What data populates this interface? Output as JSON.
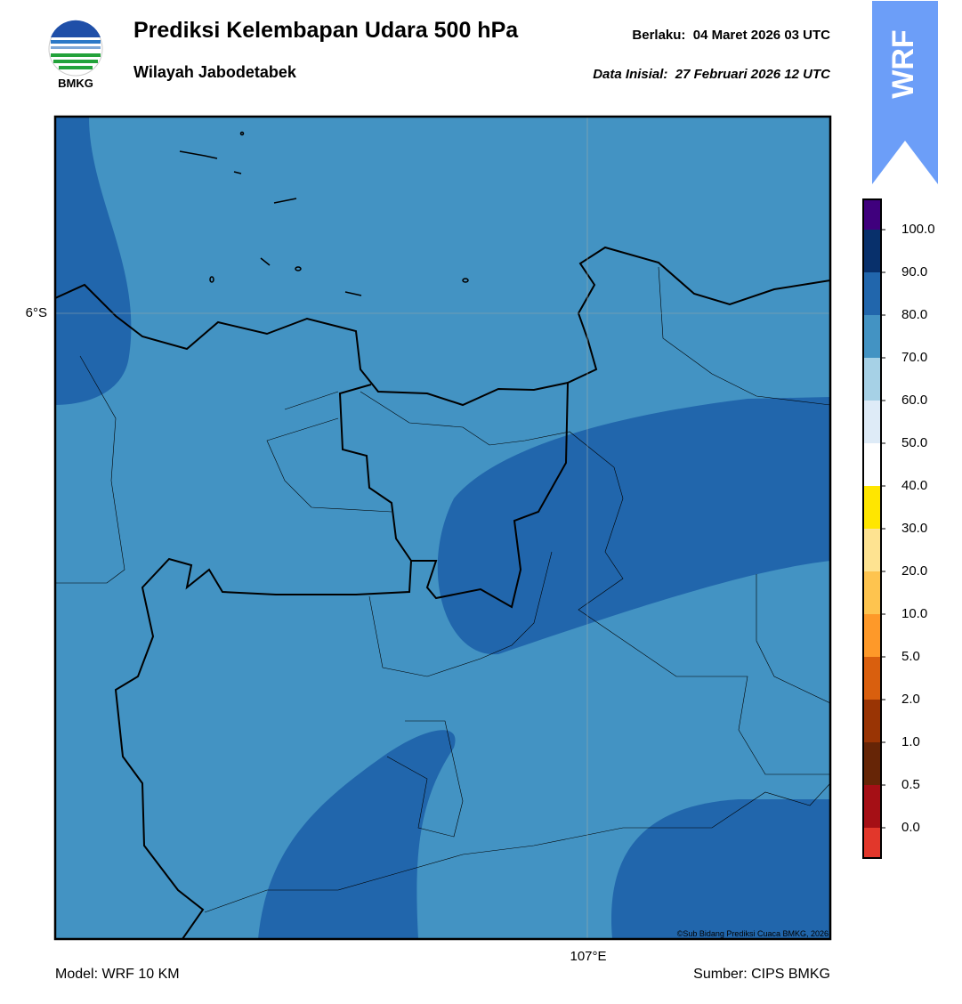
{
  "header": {
    "title": "Prediksi Kelembapan Udara 500 hPa",
    "subtitle": "Wilayah Jabodetabek",
    "valid": "Berlaku:  04 Maret 2026 03 UTC",
    "init": "Data Inisial:  27 Februari 2026 12 UTC",
    "logo": "BMKG",
    "badge": "WRF"
  },
  "map": {
    "lat_label": "6°S",
    "lon_label": "107°E",
    "credit": "©Sub Bidang Prediksi Cuaca BMKG, 2026"
  },
  "colorbar": {
    "labels": [
      "100.0",
      "90.0",
      "80.0",
      "70.0",
      "60.0",
      "50.0",
      "40.0",
      "30.0",
      "20.0",
      "10.0",
      "5.0",
      "2.0",
      "1.0",
      "0.5",
      "0.0"
    ]
  },
  "footer": {
    "model": "Model: WRF 10 KM",
    "source": "Sumber: CIPS BMKG"
  }
}
